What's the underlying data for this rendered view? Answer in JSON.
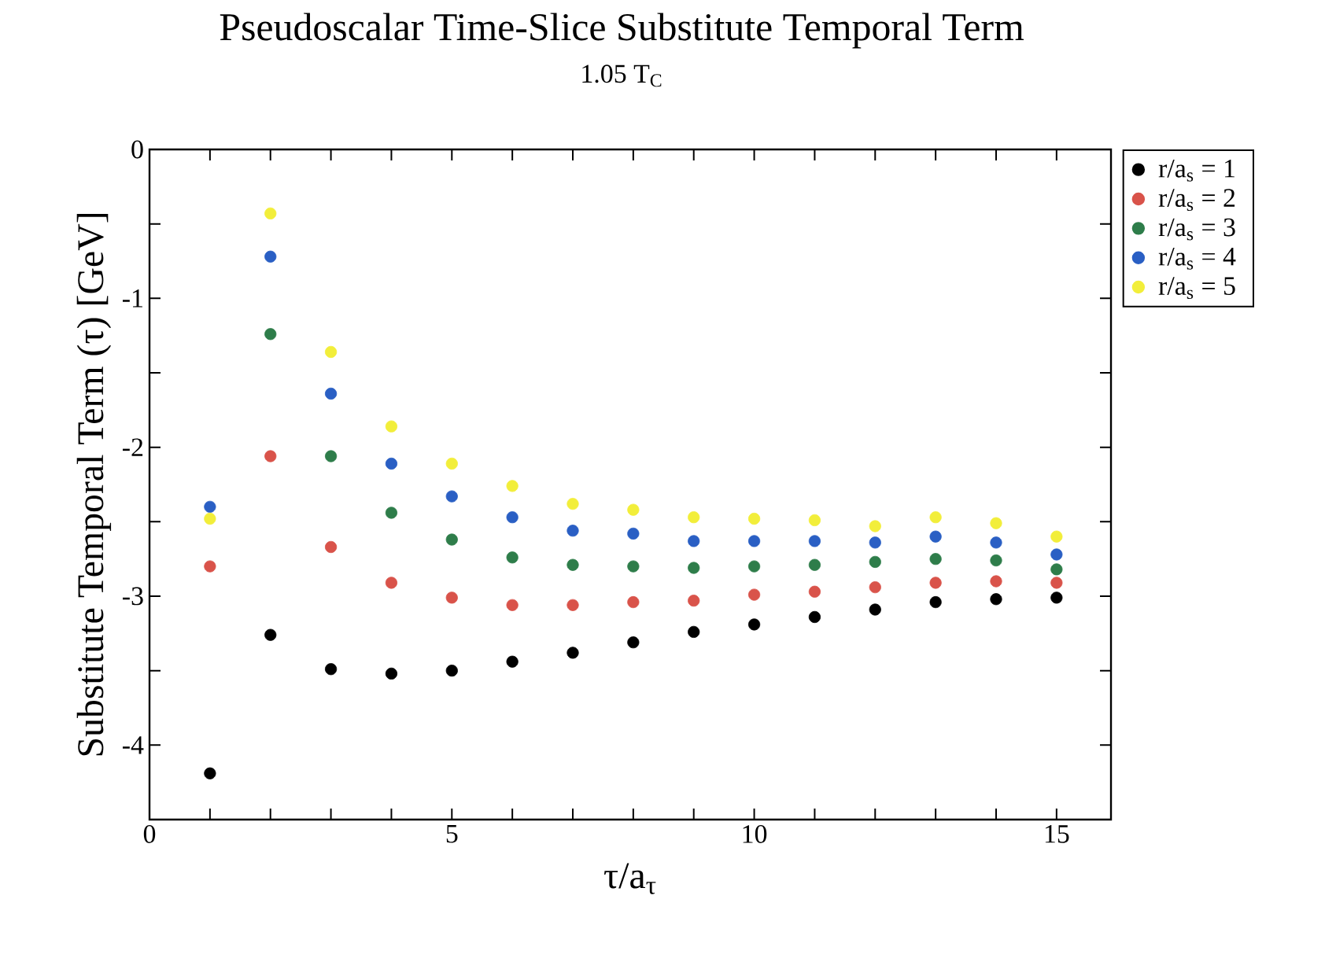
{
  "chart_data": {
    "type": "scatter",
    "title": "Pseudoscalar Time-Slice Substitute Temporal Term",
    "subtitle": "1.05 T$_{C}$",
    "xlabel": "τ/a$_{τ}$",
    "ylabel": "Substitute Temporal Term (τ) [GeV]",
    "x": [
      1,
      2,
      3,
      4,
      5,
      6,
      7,
      8,
      9,
      10,
      11,
      12,
      13,
      14,
      15
    ],
    "series": [
      {
        "name": "r/a$_{s}$ = 1",
        "color": "#000000",
        "values": [
          -4.19,
          -3.26,
          -3.49,
          -3.52,
          -3.5,
          -3.44,
          -3.38,
          -3.31,
          -3.24,
          -3.19,
          -3.14,
          -3.09,
          -3.04,
          -3.02,
          -3.01
        ]
      },
      {
        "name": "r/a$_{s}$ = 2",
        "color": "#d9534a",
        "values": [
          -2.8,
          -2.06,
          -2.67,
          -2.91,
          -3.01,
          -3.06,
          -3.06,
          -3.04,
          -3.03,
          -2.99,
          -2.97,
          -2.94,
          -2.91,
          -2.9,
          -2.91
        ]
      },
      {
        "name": "r/a$_{s}$ = 3",
        "color": "#2e7d4a",
        "values": [
          null,
          -1.24,
          -2.06,
          -2.44,
          -2.62,
          -2.74,
          -2.79,
          -2.8,
          -2.81,
          -2.8,
          -2.79,
          -2.77,
          -2.75,
          -2.76,
          -2.82
        ]
      },
      {
        "name": "r/a$_{s}$ = 4",
        "color": "#2a5fc4",
        "values": [
          -2.4,
          -0.72,
          -1.64,
          -2.11,
          -2.33,
          -2.47,
          -2.56,
          -2.58,
          -2.63,
          -2.63,
          -2.63,
          -2.64,
          -2.6,
          -2.64,
          -2.72
        ]
      },
      {
        "name": "r/a$_{s}$ = 5",
        "color": "#f2ee3a",
        "values": [
          -2.48,
          -0.43,
          -1.36,
          -1.86,
          -2.11,
          -2.26,
          -2.38,
          -2.42,
          -2.47,
          -2.48,
          -2.49,
          -2.53,
          -2.47,
          -2.51,
          -2.6
        ]
      }
    ],
    "xlim": [
      0,
      15.9
    ],
    "ylim": [
      -4.5,
      0
    ],
    "xticks": [
      0,
      {
        "value": 1,
        "label": null
      },
      {
        "value": 2,
        "label": null
      },
      {
        "value": 3,
        "label": null
      },
      {
        "value": 4,
        "label": null
      },
      5,
      {
        "value": 6,
        "label": null
      },
      {
        "value": 7,
        "label": null
      },
      {
        "value": 8,
        "label": null
      },
      {
        "value": 9,
        "label": null
      },
      10,
      {
        "value": 11,
        "label": null
      },
      {
        "value": 12,
        "label": null
      },
      {
        "value": 13,
        "label": null
      },
      {
        "value": 14,
        "label": null
      },
      15
    ],
    "yticks": [
      0,
      {
        "value": -0.5,
        "label": null
      },
      -1,
      {
        "value": -1.5,
        "label": null
      },
      -2,
      {
        "value": -2.5,
        "label": null
      },
      -3,
      {
        "value": -3.5,
        "label": null
      },
      -4
    ],
    "legend": "top right",
    "marker": "circle",
    "grid": false
  }
}
